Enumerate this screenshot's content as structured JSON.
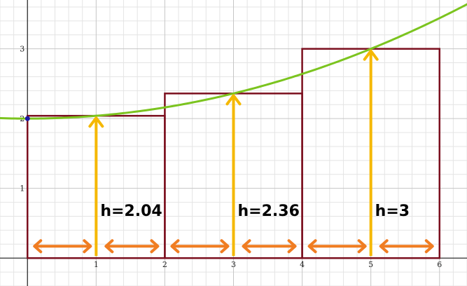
{
  "chart_data": {
    "type": "riemann-midpoint",
    "xlim": [
      -0.4,
      6.4
    ],
    "ylim": [
      -0.4,
      3.7
    ],
    "x_ticks": [
      "1",
      "2",
      "3",
      "4",
      "5",
      "6"
    ],
    "y_ticks": [
      "1",
      "2",
      "3"
    ],
    "grid": "on",
    "curve": {
      "function": "y = 2 + x^2/25",
      "x_range": [
        -0.4,
        6.4
      ],
      "color": "#7bc41f"
    },
    "start_point": {
      "x": 0,
      "y": 2,
      "color": "#1a1aa8"
    },
    "rectangles": [
      {
        "x_start": 0,
        "x_end": 2,
        "midpoint": 1,
        "height": 2.04,
        "label": "h=2.04"
      },
      {
        "x_start": 2,
        "x_end": 4,
        "midpoint": 3,
        "height": 2.36,
        "label": "h=2.36"
      },
      {
        "x_start": 4,
        "x_end": 6,
        "midpoint": 5,
        "height": 3,
        "label": "h=3"
      }
    ],
    "colors": {
      "rectangle": "#7b0f1e",
      "height_arrow": "#f5b800",
      "width_arrow": "#f07d22"
    }
  }
}
